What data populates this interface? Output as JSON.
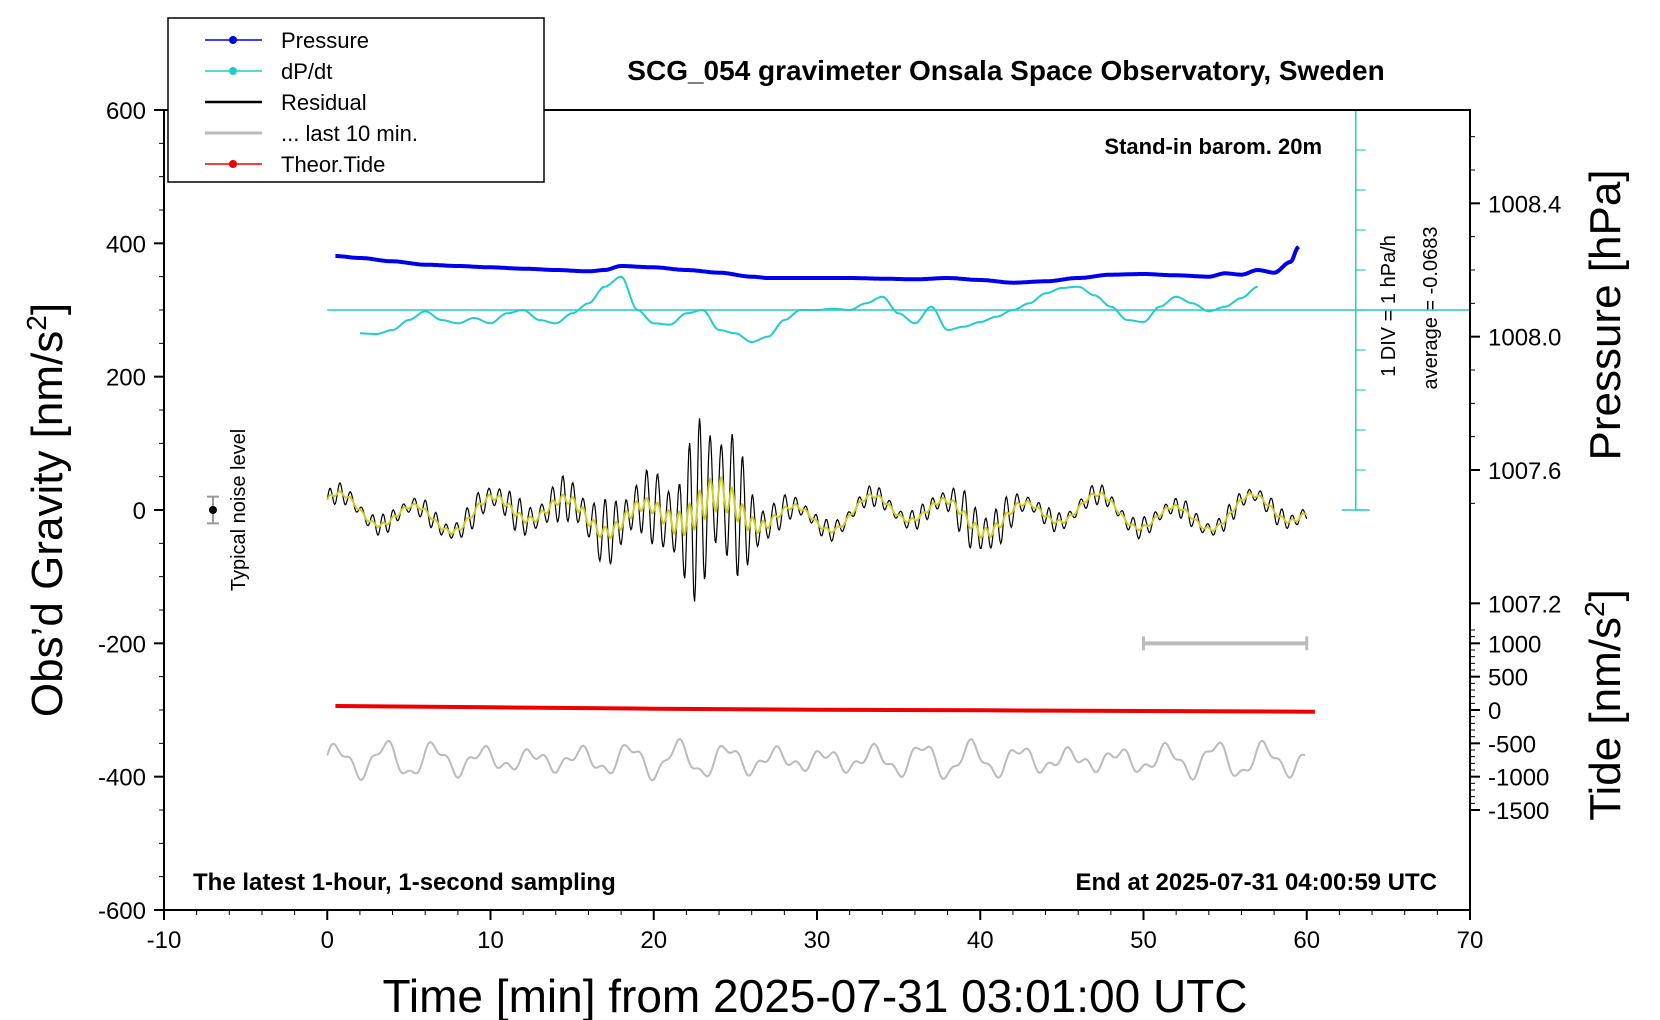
{
  "chart_data": {
    "type": "line",
    "title": "SCG_054 gravimeter Onsala Space Observatory, Sweden",
    "xlabel": "Time [min] from 2025-07-31 03:01:00 UTC",
    "ylabel_main": "Obs’d Gravity [nm/s",
    "ylabel_sup": "2",
    "ylabel_close": "]",
    "ylabel_pressure": "Pressure [hPa]",
    "ylabel_tide_main": "Tide [nm/s",
    "ylabel_tide_sup": "2",
    "ylabel_tide_close": "]",
    "xlim": [
      -10,
      70
    ],
    "ylim": [
      -600,
      600
    ],
    "x_ticks": [
      "-10",
      "0",
      "10",
      "20",
      "30",
      "40",
      "50",
      "60",
      "70"
    ],
    "y_ticks": [
      "-600",
      "-400",
      "-200",
      "0",
      "200",
      "400",
      "600"
    ],
    "pressure_ticks": [
      "1007.2",
      "1007.6",
      "1008.0",
      "1008.4"
    ],
    "pressure_axis": {
      "value_at_y600": 1008.68,
      "units_per_nms2": 0.002
    },
    "tide_ticks": [
      "-1500",
      "-1000",
      "-500",
      "0",
      "500",
      "1000"
    ],
    "tide_axis": {
      "zero_at_y": -300,
      "scale": 0.1
    },
    "annotations": {
      "barometer": "Stand-in barom. 20m",
      "latest": "The latest 1-hour, 1-second sampling",
      "end": "End at 2025-07-31 04:00:59 UTC",
      "div": "1 DIV = 1 hPa/h",
      "average": "average = -0.0683",
      "noise": "Typical noise level"
    },
    "noise_marker": {
      "x": -7,
      "y": 0,
      "err": 20
    },
    "last_10min_bar": {
      "x_start": 50,
      "x_end": 60,
      "y": -200
    },
    "dpdt_scale": {
      "x": 63,
      "y_min": 0,
      "y_max": 600,
      "baseline_y": 300
    },
    "legend": [
      {
        "label": "Pressure",
        "color": "#0000ee",
        "marker": true
      },
      {
        "label": "dP/dt",
        "color": "#22cccc",
        "marker": true
      },
      {
        "label": "Residual",
        "color": "#000000",
        "marker": false
      },
      {
        "label": "... last 10 min.",
        "color": "#bbbbbb",
        "marker": false
      },
      {
        "label": "Theor.Tide",
        "color": "#ee0000",
        "marker": true
      }
    ],
    "series": [
      {
        "name": "Pressure",
        "color": "#0000ee",
        "x": [
          0.5,
          2,
          4,
          6,
          8,
          10,
          12,
          14,
          16,
          17,
          18,
          20,
          22,
          24,
          26,
          27,
          28,
          30,
          32,
          34,
          36,
          38,
          40,
          42,
          44,
          46,
          48,
          50,
          52,
          54,
          55,
          56,
          57,
          58,
          59,
          59.5
        ],
        "y": [
          381,
          378,
          373,
          368,
          366,
          364,
          362,
          360,
          358,
          360,
          366,
          364,
          360,
          356,
          350,
          348,
          348,
          348,
          348,
          347,
          346,
          348,
          345,
          341,
          343,
          348,
          353,
          354,
          352,
          350,
          355,
          353,
          360,
          356,
          372,
          395
        ]
      },
      {
        "name": "dP/dt",
        "color": "#22cccc",
        "x": [
          2,
          3,
          4,
          5,
          6,
          7,
          8,
          9,
          10,
          11,
          12,
          13,
          14,
          15,
          16,
          17,
          18,
          19,
          20,
          21,
          22,
          23,
          24,
          25,
          26,
          27,
          28,
          29,
          30,
          31,
          32,
          33,
          34,
          35,
          36,
          37,
          38,
          39,
          40,
          41,
          42,
          43,
          44,
          45,
          46,
          47,
          48,
          49,
          50,
          51,
          52,
          53,
          54,
          55,
          56,
          57
        ],
        "y": [
          265,
          264,
          270,
          285,
          298,
          285,
          280,
          288,
          280,
          295,
          300,
          285,
          280,
          295,
          310,
          335,
          350,
          300,
          280,
          278,
          295,
          300,
          270,
          265,
          252,
          260,
          285,
          300,
          300,
          302,
          300,
          310,
          320,
          295,
          280,
          305,
          270,
          275,
          282,
          290,
          300,
          310,
          325,
          333,
          335,
          322,
          305,
          285,
          282,
          305,
          320,
          310,
          298,
          305,
          318,
          335
        ]
      },
      {
        "name": "Theor.Tide",
        "color": "#ee0000",
        "x": [
          0.5,
          10,
          20,
          30,
          40,
          50,
          60.5
        ],
        "y": [
          -294,
          -296,
          -298,
          -299.5,
          -300.5,
          -301.5,
          -302.5
        ]
      }
    ]
  }
}
